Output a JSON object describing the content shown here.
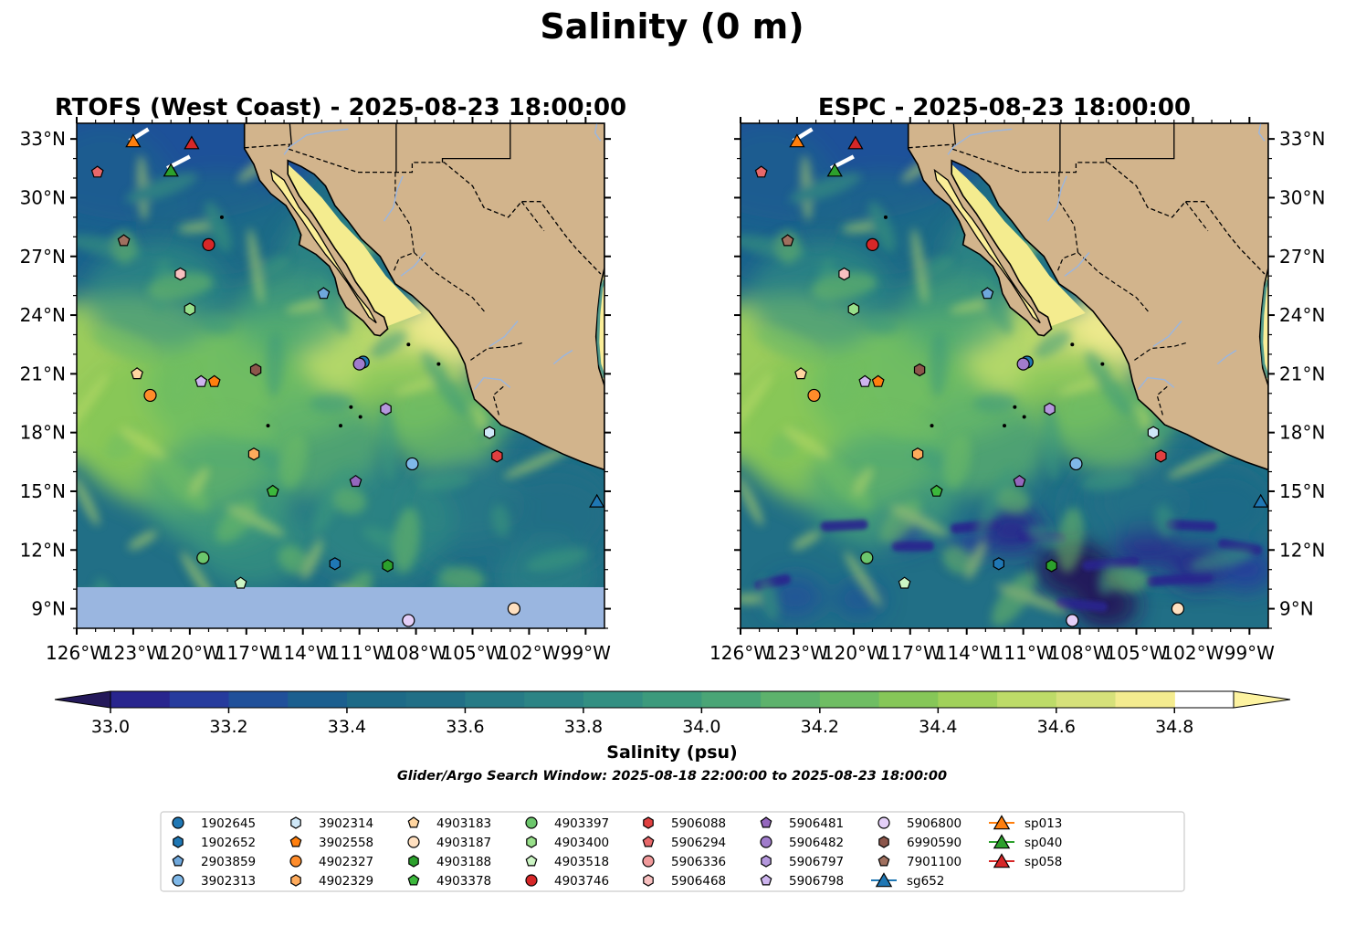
{
  "figure": {
    "title": "Salinity (0 m)",
    "search_window": "Glider/Argo Search Window: 2025-08-18 22:00:00 to 2025-08-23 18:00:00"
  },
  "colors": {
    "land": "#d2b48c",
    "nodata": "#9ab6e0",
    "coast": "#000000",
    "river": "#9ab6e0"
  },
  "chart_data": [
    {
      "type": "heatmap",
      "title": "RTOFS (West Coast) - 2025-08-23 18:00:00",
      "lon_range": [
        -126,
        -98
      ],
      "lat_range": [
        8,
        33.8
      ],
      "lon_ticks": [
        "126°W",
        "123°W",
        "120°W",
        "117°W",
        "114°W",
        "111°W",
        "108°W",
        "105°W",
        "102°W",
        "99°W"
      ],
      "lat_ticks": [
        "9°N",
        "12°N",
        "15°N",
        "18°N",
        "21°N",
        "24°N",
        "27°N",
        "30°N",
        "33°N"
      ],
      "nodata_below_lat": 10.1,
      "glider_tracks": [
        {
          "name": "sp013",
          "lon": [
            -123.2,
            -122.2
          ],
          "lat": [
            32.9,
            33.5
          ]
        },
        {
          "name": "sp040",
          "lon": [
            -121.2,
            -120.0
          ],
          "lat": [
            31.5,
            32.1
          ]
        }
      ],
      "markers": [
        {
          "id": "4903746",
          "lon": -119.0,
          "lat": 27.6
        },
        {
          "id": "7901100",
          "lon": -123.5,
          "lat": 27.8
        },
        {
          "id": "5906294",
          "lon": -124.9,
          "lat": 31.3
        },
        {
          "id": "5906468",
          "lon": -120.5,
          "lat": 26.1
        },
        {
          "id": "2903859",
          "lon": -112.9,
          "lat": 25.1
        },
        {
          "id": "4903400",
          "lon": -120.0,
          "lat": 24.3
        },
        {
          "id": "4903183",
          "lon": -122.8,
          "lat": 21.0
        },
        {
          "id": "4902327",
          "lon": -122.1,
          "lat": 19.9
        },
        {
          "id": "5906798",
          "lon": -119.4,
          "lat": 20.6
        },
        {
          "id": "3902558",
          "lon": -118.7,
          "lat": 20.6
        },
        {
          "id": "6990590",
          "lon": -116.5,
          "lat": 21.2
        },
        {
          "id": "1902645",
          "lon": -110.8,
          "lat": 21.6
        },
        {
          "id": "5906482",
          "lon": -111.0,
          "lat": 21.5
        },
        {
          "id": "5906797",
          "lon": -109.6,
          "lat": 19.2
        },
        {
          "id": "3902314",
          "lon": -104.1,
          "lat": 18.0
        },
        {
          "id": "4902329",
          "lon": -116.6,
          "lat": 16.9
        },
        {
          "id": "5906088",
          "lon": -103.7,
          "lat": 16.8
        },
        {
          "id": "3902313",
          "lon": -108.2,
          "lat": 16.4
        },
        {
          "id": "5906481",
          "lon": -111.2,
          "lat": 15.5
        },
        {
          "id": "4903378",
          "lon": -115.6,
          "lat": 15.0
        },
        {
          "id": "4903397",
          "lon": -119.3,
          "lat": 11.6
        },
        {
          "id": "1902652",
          "lon": -112.3,
          "lat": 11.3
        },
        {
          "id": "4903188",
          "lon": -109.5,
          "lat": 11.2
        },
        {
          "id": "4903518",
          "lon": -117.3,
          "lat": 10.3
        },
        {
          "id": "5906800",
          "lon": -108.4,
          "lat": 8.4
        },
        {
          "id": "4903187",
          "lon": -102.8,
          "lat": 9.0
        },
        {
          "id": "sp013",
          "lon": -123.0,
          "lat": 32.9
        },
        {
          "id": "sp040",
          "lon": -121.0,
          "lat": 31.4
        },
        {
          "id": "sp058",
          "lon": -119.9,
          "lat": 32.8
        },
        {
          "id": "sg652",
          "lon": -98.4,
          "lat": 14.5
        }
      ]
    },
    {
      "type": "heatmap",
      "title": "ESPC - 2025-08-23 18:00:00",
      "lon_range": [
        -126,
        -98
      ],
      "lat_range": [
        8,
        33.8
      ],
      "lon_ticks": [
        "126°W",
        "123°W",
        "120°W",
        "117°W",
        "114°W",
        "111°W",
        "108°W",
        "105°W",
        "102°W",
        "99°W"
      ],
      "lat_ticks": [
        "9°N",
        "12°N",
        "15°N",
        "18°N",
        "21°N",
        "24°N",
        "27°N",
        "30°N",
        "33°N"
      ],
      "nodata_below_lat": null,
      "glider_tracks": [
        {
          "name": "sp013",
          "lon": [
            -123.2,
            -122.2
          ],
          "lat": [
            32.9,
            33.5
          ]
        },
        {
          "name": "sp040",
          "lon": [
            -121.2,
            -120.0
          ],
          "lat": [
            31.5,
            32.1
          ]
        }
      ],
      "markers": [
        {
          "id": "4903746",
          "lon": -119.0,
          "lat": 27.6
        },
        {
          "id": "7901100",
          "lon": -123.5,
          "lat": 27.8
        },
        {
          "id": "5906294",
          "lon": -124.9,
          "lat": 31.3
        },
        {
          "id": "5906468",
          "lon": -120.5,
          "lat": 26.1
        },
        {
          "id": "2903859",
          "lon": -112.9,
          "lat": 25.1
        },
        {
          "id": "4903400",
          "lon": -120.0,
          "lat": 24.3
        },
        {
          "id": "4903183",
          "lon": -122.8,
          "lat": 21.0
        },
        {
          "id": "4902327",
          "lon": -122.1,
          "lat": 19.9
        },
        {
          "id": "5906798",
          "lon": -119.4,
          "lat": 20.6
        },
        {
          "id": "3902558",
          "lon": -118.7,
          "lat": 20.6
        },
        {
          "id": "6990590",
          "lon": -116.5,
          "lat": 21.2
        },
        {
          "id": "1902645",
          "lon": -110.8,
          "lat": 21.6
        },
        {
          "id": "5906482",
          "lon": -111.0,
          "lat": 21.5
        },
        {
          "id": "5906797",
          "lon": -109.6,
          "lat": 19.2
        },
        {
          "id": "3902314",
          "lon": -104.1,
          "lat": 18.0
        },
        {
          "id": "4902329",
          "lon": -116.6,
          "lat": 16.9
        },
        {
          "id": "5906088",
          "lon": -103.7,
          "lat": 16.8
        },
        {
          "id": "3902313",
          "lon": -108.2,
          "lat": 16.4
        },
        {
          "id": "5906481",
          "lon": -111.2,
          "lat": 15.5
        },
        {
          "id": "4903378",
          "lon": -115.6,
          "lat": 15.0
        },
        {
          "id": "4903397",
          "lon": -119.3,
          "lat": 11.6
        },
        {
          "id": "1902652",
          "lon": -112.3,
          "lat": 11.3
        },
        {
          "id": "4903188",
          "lon": -109.5,
          "lat": 11.2
        },
        {
          "id": "4903518",
          "lon": -117.3,
          "lat": 10.3
        },
        {
          "id": "5906800",
          "lon": -108.4,
          "lat": 8.4
        },
        {
          "id": "4903187",
          "lon": -102.8,
          "lat": 9.0
        },
        {
          "id": "sp013",
          "lon": -123.0,
          "lat": 32.9
        },
        {
          "id": "sp040",
          "lon": -121.0,
          "lat": 31.4
        },
        {
          "id": "sp058",
          "lon": -119.9,
          "lat": 32.8
        },
        {
          "id": "sg652",
          "lon": -98.4,
          "lat": 14.5
        }
      ]
    }
  ],
  "colorbar": {
    "label": "Salinity (psu)",
    "min": 32.9,
    "max": 35.0,
    "step": 0.1,
    "extend": "both",
    "tick_values": [
      33.0,
      33.2,
      33.4,
      33.6,
      33.8,
      34.0,
      34.2,
      34.4,
      34.6,
      34.8
    ],
    "tick_labels": [
      "33.0",
      "33.2",
      "33.4",
      "33.6",
      "33.8",
      "34.0",
      "34.2",
      "34.4",
      "34.6",
      "34.8"
    ],
    "colors": [
      "#24195a",
      "#28258e",
      "#263b9d",
      "#20509a",
      "#1b5f8f",
      "#1d6a87",
      "#216f86",
      "#277b86",
      "#2c8485",
      "#338f82",
      "#3c9a7c",
      "#4aa576",
      "#5db26c",
      "#6fbd63",
      "#86c758",
      "#a1d15a",
      "#bddb68",
      "#d6e17a",
      "#f4ec8f",
      "#fdf3a0"
    ]
  },
  "legend": {
    "entries": [
      {
        "id": "1902645",
        "marker": "circle",
        "color": "#1f77b4"
      },
      {
        "id": "1902652",
        "marker": "hexagon",
        "color": "#1f77b4"
      },
      {
        "id": "2903859",
        "marker": "pentagon",
        "color": "#6fa8dc"
      },
      {
        "id": "3902313",
        "marker": "circle",
        "color": "#7fb8e8"
      },
      {
        "id": "3902314",
        "marker": "hexagon",
        "color": "#cfe8f8"
      },
      {
        "id": "3902558",
        "marker": "pentagon",
        "color": "#ff7f0e"
      },
      {
        "id": "4902327",
        "marker": "circle",
        "color": "#ff8c2a"
      },
      {
        "id": "4902329",
        "marker": "hexagon",
        "color": "#ffab5c"
      },
      {
        "id": "4903183",
        "marker": "pentagon",
        "color": "#ffd5a0"
      },
      {
        "id": "4903187",
        "marker": "circle",
        "color": "#ffe0c0"
      },
      {
        "id": "4903188",
        "marker": "hexagon",
        "color": "#2ca02c"
      },
      {
        "id": "4903378",
        "marker": "pentagon",
        "color": "#3cb83c"
      },
      {
        "id": "4903397",
        "marker": "circle",
        "color": "#6cc66c"
      },
      {
        "id": "4903400",
        "marker": "hexagon",
        "color": "#98df8a"
      },
      {
        "id": "4903518",
        "marker": "pentagon",
        "color": "#ccf5c4"
      },
      {
        "id": "4903746",
        "marker": "circle",
        "color": "#d62728"
      },
      {
        "id": "5906088",
        "marker": "hexagon",
        "color": "#e04040"
      },
      {
        "id": "5906294",
        "marker": "pentagon",
        "color": "#e8686a"
      },
      {
        "id": "5906336",
        "marker": "circle",
        "color": "#f19a9b"
      },
      {
        "id": "5906468",
        "marker": "hexagon",
        "color": "#f8c0c0"
      },
      {
        "id": "5906481",
        "marker": "pentagon",
        "color": "#9467bd"
      },
      {
        "id": "5906482",
        "marker": "circle",
        "color": "#a07ccc"
      },
      {
        "id": "5906797",
        "marker": "hexagon",
        "color": "#b497dd"
      },
      {
        "id": "5906798",
        "marker": "pentagon",
        "color": "#cdb4ee"
      },
      {
        "id": "5906800",
        "marker": "circle",
        "color": "#e4cff8"
      },
      {
        "id": "6990590",
        "marker": "hexagon",
        "color": "#8c564b"
      },
      {
        "id": "7901100",
        "marker": "pentagon",
        "color": "#a0705f"
      },
      {
        "id": "sg652",
        "marker": "triangle",
        "color": "#1f77b4"
      },
      {
        "id": "sp013",
        "marker": "triangle",
        "color": "#ff7f0e"
      },
      {
        "id": "sp040",
        "marker": "triangle",
        "color": "#2ca02c"
      },
      {
        "id": "sp058",
        "marker": "triangle",
        "color": "#d62728"
      }
    ]
  }
}
